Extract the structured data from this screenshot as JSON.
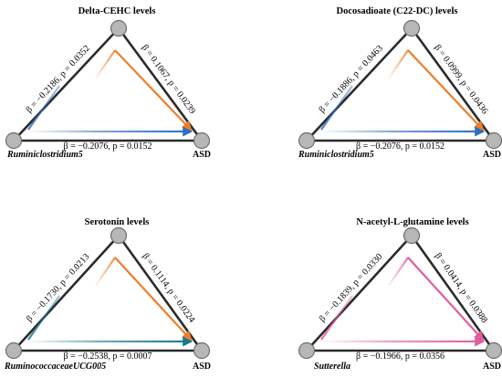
{
  "panels": [
    {
      "title": "Delta-CEHC levels",
      "left_stat": "β = −0.2186, p = 0.0352",
      "right_stat": "β = 0.1067, p = 0.0239",
      "bottom_stat": "β = −0.2076, p = 0.0152",
      "left_node": "Ruminiclostridium5",
      "right_node": "ASD",
      "direct_color": "#2f6fbe",
      "indirect_color": "#ee7d2a"
    },
    {
      "title": "Docosadioate (C22-DC) levels",
      "left_stat": "β = −0.1886, p = 0.0463",
      "right_stat": "β = 0.0999, p = 0.0436",
      "bottom_stat": "β = −0.2076, p = 0.0152",
      "left_node": "Ruminiclostridium5",
      "right_node": "ASD",
      "direct_color": "#2f6fbe",
      "indirect_color": "#ee7d2a"
    },
    {
      "title": "Serotonin levels",
      "left_stat": "β = −0.1730, p = 0.0213",
      "right_stat": "β = 0.1114, p = 0.0224",
      "bottom_stat": "β = −0.2538, p = 0.0007",
      "left_node": "RuminococcaceaeUCG005",
      "right_node": "ASD",
      "direct_color": "#167a8a",
      "indirect_color": "#ee7d2a"
    },
    {
      "title": "N-acetyl-L-glutamine levels",
      "left_stat": "β = −0.1839, p = 0.0330",
      "right_stat": "β = 0.0414, p = 0.0388",
      "bottom_stat": "β = −0.1966, p = 0.0356",
      "left_node": "Sutterella",
      "right_node": "ASD",
      "direct_color": "#e05ca0",
      "indirect_color": "#e05ca0"
    }
  ]
}
